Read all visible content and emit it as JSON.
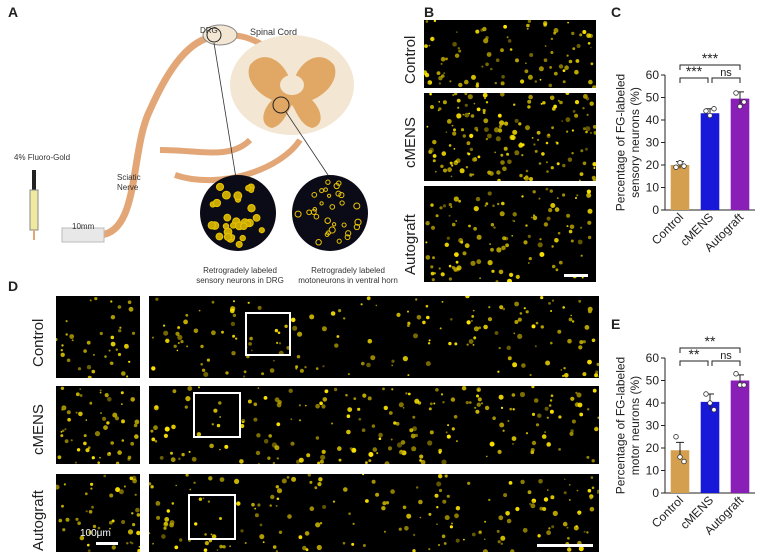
{
  "panel_letters": {
    "a": "A",
    "b": "B",
    "c": "C",
    "d": "D",
    "e": "E"
  },
  "schematic": {
    "drg_label": "DRG",
    "spinal_cord_label": "Spinal Cord",
    "sciatic_label_line1": "Sciatic",
    "sciatic_label_line2": "Nerve",
    "fluorogold_label": "4% Fluoro-Gold",
    "distance_label": "10mm",
    "caption_left_line1": "Retrogradely labeled",
    "caption_left_line2": "sensory neurons in DRG",
    "caption_right_line1": "Retrogradely labeled",
    "caption_right_line2": "motoneurons in ventral horn",
    "colors": {
      "nerve": "#e3a777",
      "cord_outer": "#f3e6d2",
      "grey_matter": "#e0a765",
      "micro": "#0b0b18",
      "signal": "#ffe600"
    }
  },
  "panel_b": {
    "rows": [
      "Control",
      "cMENS",
      "Autograft"
    ]
  },
  "panel_d": {
    "rows": [
      "Control",
      "cMENS",
      "Autograft"
    ],
    "scale_label": "100μm"
  },
  "chart_data": [
    {
      "type": "bar",
      "panel": "C",
      "categories": [
        "Control",
        "cMENS",
        "Autograft"
      ],
      "values": [
        20,
        43,
        49.5
      ],
      "errors": [
        1.5,
        2,
        3
      ],
      "points": [
        [
          19,
          21,
          19.5
        ],
        [
          44,
          42,
          45
        ],
        [
          52,
          46,
          48
        ]
      ],
      "colors": [
        "#d4a050",
        "#1818d8",
        "#8a1fb8"
      ],
      "ylabel": "Percentage of FG-labeled sensory neurons (%)",
      "ylim": [
        0,
        60
      ],
      "yticks": [
        0,
        10,
        20,
        30,
        40,
        50,
        60
      ],
      "significance": [
        {
          "from": 0,
          "to": 2,
          "label": "***"
        },
        {
          "from": 0,
          "to": 1,
          "label": "***"
        },
        {
          "from": 1,
          "to": 2,
          "label": "ns"
        }
      ]
    },
    {
      "type": "bar",
      "panel": "E",
      "categories": [
        "Control",
        "cMENS",
        "Autograft"
      ],
      "values": [
        19,
        40.5,
        50
      ],
      "errors": [
        3.5,
        3.5,
        2.5
      ],
      "points": [
        [
          25,
          16,
          14
        ],
        [
          44,
          40,
          37
        ],
        [
          53,
          48,
          48
        ]
      ],
      "colors": [
        "#d4a050",
        "#1818d8",
        "#8a1fb8"
      ],
      "ylabel": "Percentage of FG-labeled motor neurons (%)",
      "ylim": [
        0,
        60
      ],
      "yticks": [
        0,
        10,
        20,
        30,
        40,
        50,
        60
      ],
      "significance": [
        {
          "from": 0,
          "to": 2,
          "label": "**"
        },
        {
          "from": 0,
          "to": 1,
          "label": "**"
        },
        {
          "from": 1,
          "to": 2,
          "label": "ns"
        }
      ]
    }
  ]
}
